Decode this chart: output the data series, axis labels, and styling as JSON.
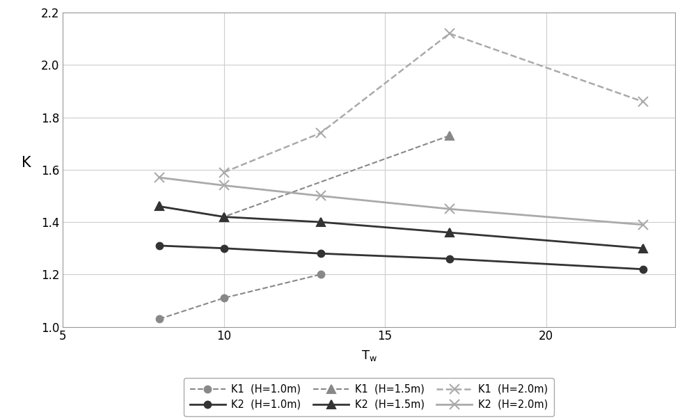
{
  "x_values": [
    8,
    10,
    13,
    17,
    23
  ],
  "series_order": [
    "K1_H1.0",
    "K2_H1.0",
    "K1_H1.5",
    "K2_H1.5",
    "K1_H2.0",
    "K2_H2.0"
  ],
  "series": {
    "K1_H1.0": {
      "y": [
        1.03,
        1.11,
        1.2,
        null,
        null
      ],
      "color": "#888888",
      "linestyle": "--",
      "marker": "o",
      "markersize": 7,
      "linewidth": 1.5,
      "label": "K1  (H=1.0m)",
      "markerfacecolor": "#888888"
    },
    "K2_H1.0": {
      "y": [
        1.31,
        1.3,
        1.28,
        1.26,
        1.22
      ],
      "color": "#333333",
      "linestyle": "-",
      "marker": "o",
      "markersize": 7,
      "linewidth": 2.0,
      "label": "K2  (H=1.0m)",
      "markerfacecolor": "#333333"
    },
    "K1_H1.5": {
      "y": [
        1.46,
        1.42,
        null,
        1.73,
        null
      ],
      "color": "#888888",
      "linestyle": "--",
      "marker": "^",
      "markersize": 8,
      "linewidth": 1.5,
      "label": "K1  (H=1.5m)",
      "markerfacecolor": "#888888"
    },
    "K2_H1.5": {
      "y": [
        1.46,
        1.42,
        1.4,
        1.36,
        1.3
      ],
      "color": "#333333",
      "linestyle": "-",
      "marker": "^",
      "markersize": 8,
      "linewidth": 2.0,
      "label": "K2  (H=1.5m)",
      "markerfacecolor": "#333333"
    },
    "K1_H2.0": {
      "y": [
        null,
        1.59,
        1.74,
        2.12,
        1.86
      ],
      "color": "#aaaaaa",
      "linestyle": "--",
      "marker": "x",
      "markersize": 10,
      "linewidth": 1.8,
      "label": "K1  (H=2.0m)",
      "markerfacecolor": "#aaaaaa"
    },
    "K2_H2.0": {
      "y": [
        1.57,
        1.54,
        1.5,
        1.45,
        1.39
      ],
      "color": "#aaaaaa",
      "linestyle": "-",
      "marker": "x",
      "markersize": 10,
      "linewidth": 2.0,
      "label": "K2  (H=2.0m)",
      "markerfacecolor": "#aaaaaa"
    }
  },
  "ylabel": "K",
  "xlim": [
    5,
    24
  ],
  "ylim": [
    1.0,
    2.2
  ],
  "xticks": [
    5,
    10,
    15,
    20
  ],
  "yticks": [
    1.0,
    1.2,
    1.4,
    1.6,
    1.8,
    2.0,
    2.2
  ],
  "background_color": "#ffffff",
  "figsize": [
    10.0,
    6.02
  ],
  "dpi": 100,
  "legend_order": [
    "K1_H1.0",
    "K2_H1.0",
    "K1_H1.5",
    "K2_H1.5",
    "K1_H2.0",
    "K2_H2.0"
  ],
  "legend_ncol": 3,
  "legend_row1": [
    "K1_H1.0",
    "K2_H1.0",
    "K1_H1.5"
  ],
  "legend_row2": [
    "K2_H1.5",
    "K1_H2.0",
    "K2_H2.0"
  ]
}
